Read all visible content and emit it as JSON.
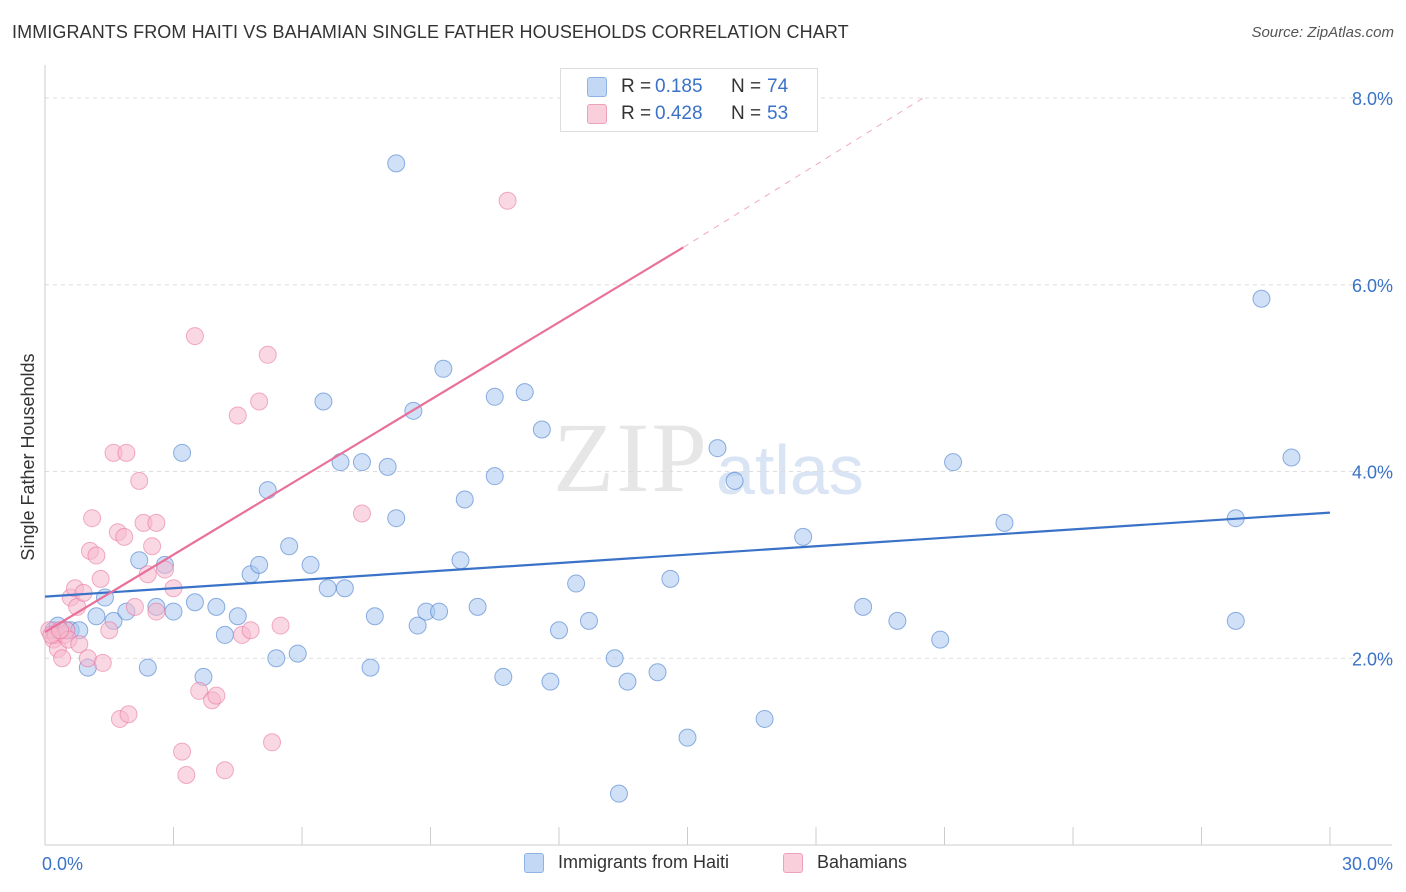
{
  "title": "IMMIGRANTS FROM HAITI VS BAHAMIAN SINGLE FATHER HOUSEHOLDS CORRELATION CHART",
  "source": "Source: ZipAtlas.com",
  "watermark": {
    "zip": "ZIP",
    "atlas": "atlas"
  },
  "legend": {
    "rows": [
      {
        "r_label": "R =",
        "r_value": "0.185",
        "n_label": "N =",
        "n_value": "74",
        "color": "#a9c8f0"
      },
      {
        "r_label": "R =",
        "r_value": "0.428",
        "n_label": "N =",
        "n_value": "53",
        "color": "#f5b8cc"
      }
    ]
  },
  "bottom_legend": [
    {
      "label": "Immigrants from Haiti",
      "color": "#a9c8f0"
    },
    {
      "label": "Bahamians",
      "color": "#f5b8cc"
    }
  ],
  "chart_data": {
    "type": "scatter",
    "title": "IMMIGRANTS FROM HAITI VS BAHAMIAN SINGLE FATHER HOUSEHOLDS CORRELATION CHART",
    "xlabel": "",
    "ylabel": "Single Father Households",
    "xlim": [
      0,
      30
    ],
    "ylim": [
      0,
      8.3
    ],
    "x_tick_labels": [
      "0.0%",
      "30.0%"
    ],
    "y_ticks": [
      2.0,
      4.0,
      6.0,
      8.0
    ],
    "y_tick_labels": [
      "2.0%",
      "4.0%",
      "6.0%",
      "8.0%"
    ],
    "grid": true,
    "series": [
      {
        "name": "Immigrants from Haiti",
        "color": "#3a72c8",
        "fill": "#a9c8f0",
        "trend": {
          "x": [
            0,
            30
          ],
          "y": [
            2.66,
            3.56
          ],
          "dashed_to": null
        },
        "points": [
          [
            0.2,
            2.3
          ],
          [
            0.3,
            2.35
          ],
          [
            0.5,
            2.3
          ],
          [
            0.6,
            2.3
          ],
          [
            0.8,
            2.3
          ],
          [
            1.0,
            1.9
          ],
          [
            1.2,
            2.45
          ],
          [
            1.4,
            2.65
          ],
          [
            1.6,
            2.4
          ],
          [
            1.9,
            2.5
          ],
          [
            2.2,
            3.05
          ],
          [
            2.4,
            1.9
          ],
          [
            2.6,
            2.55
          ],
          [
            2.8,
            3.0
          ],
          [
            3.0,
            2.5
          ],
          [
            3.2,
            4.2
          ],
          [
            3.5,
            2.6
          ],
          [
            3.7,
            1.8
          ],
          [
            4.0,
            2.55
          ],
          [
            4.2,
            2.25
          ],
          [
            4.5,
            2.45
          ],
          [
            4.8,
            2.9
          ],
          [
            5.0,
            3.0
          ],
          [
            5.2,
            3.8
          ],
          [
            5.4,
            2.0
          ],
          [
            5.7,
            3.2
          ],
          [
            5.9,
            2.05
          ],
          [
            6.2,
            3.0
          ],
          [
            6.5,
            4.75
          ],
          [
            6.6,
            2.75
          ],
          [
            6.9,
            4.1
          ],
          [
            7.0,
            2.75
          ],
          [
            7.4,
            4.1
          ],
          [
            7.6,
            1.9
          ],
          [
            7.7,
            2.45
          ],
          [
            8.0,
            4.05
          ],
          [
            8.2,
            3.5
          ],
          [
            8.2,
            7.3
          ],
          [
            8.6,
            4.65
          ],
          [
            8.7,
            2.35
          ],
          [
            8.9,
            2.5
          ],
          [
            9.2,
            2.5
          ],
          [
            9.3,
            5.1
          ],
          [
            9.7,
            3.05
          ],
          [
            9.8,
            3.7
          ],
          [
            10.1,
            2.55
          ],
          [
            10.5,
            4.8
          ],
          [
            10.5,
            3.95
          ],
          [
            10.7,
            1.8
          ],
          [
            11.2,
            4.85
          ],
          [
            11.6,
            4.45
          ],
          [
            11.8,
            1.75
          ],
          [
            12.0,
            2.3
          ],
          [
            12.4,
            2.8
          ],
          [
            12.7,
            2.4
          ],
          [
            13.3,
            2.0
          ],
          [
            13.4,
            0.55
          ],
          [
            13.6,
            1.75
          ],
          [
            14.3,
            1.85
          ],
          [
            14.6,
            2.85
          ],
          [
            15.0,
            1.15
          ],
          [
            15.7,
            4.25
          ],
          [
            16.1,
            3.9
          ],
          [
            16.8,
            1.35
          ],
          [
            17.7,
            3.3
          ],
          [
            19.1,
            2.55
          ],
          [
            19.9,
            2.4
          ],
          [
            20.9,
            2.2
          ],
          [
            21.2,
            4.1
          ],
          [
            22.4,
            3.45
          ],
          [
            27.8,
            3.5
          ],
          [
            27.8,
            2.4
          ],
          [
            28.4,
            5.85
          ],
          [
            29.1,
            4.15
          ]
        ]
      },
      {
        "name": "Bahamians",
        "color": "#e8709a",
        "fill": "#f5b8cc",
        "trend": {
          "x": [
            0,
            14.9
          ],
          "y": [
            2.28,
            6.4
          ],
          "dashed_to": [
            20.5,
            8.0
          ]
        },
        "points": [
          [
            0.1,
            2.3
          ],
          [
            0.2,
            2.2
          ],
          [
            0.25,
            2.25
          ],
          [
            0.3,
            2.1
          ],
          [
            0.4,
            2.0
          ],
          [
            0.45,
            2.25
          ],
          [
            0.5,
            2.3
          ],
          [
            0.55,
            2.2
          ],
          [
            0.6,
            2.65
          ],
          [
            0.7,
            2.75
          ],
          [
            0.75,
            2.55
          ],
          [
            0.8,
            2.15
          ],
          [
            0.9,
            2.7
          ],
          [
            1.0,
            2.0
          ],
          [
            1.05,
            3.15
          ],
          [
            1.1,
            3.5
          ],
          [
            1.2,
            3.1
          ],
          [
            1.3,
            2.85
          ],
          [
            1.35,
            1.95
          ],
          [
            1.5,
            2.3
          ],
          [
            1.6,
            4.2
          ],
          [
            1.7,
            3.35
          ],
          [
            1.75,
            1.35
          ],
          [
            1.85,
            3.3
          ],
          [
            1.9,
            4.2
          ],
          [
            1.95,
            1.4
          ],
          [
            2.1,
            2.55
          ],
          [
            2.2,
            3.9
          ],
          [
            2.3,
            3.45
          ],
          [
            2.4,
            2.9
          ],
          [
            2.5,
            3.2
          ],
          [
            2.6,
            3.45
          ],
          [
            2.6,
            2.5
          ],
          [
            2.8,
            2.95
          ],
          [
            3.0,
            2.75
          ],
          [
            3.2,
            1.0
          ],
          [
            3.3,
            0.75
          ],
          [
            3.5,
            5.45
          ],
          [
            3.6,
            1.65
          ],
          [
            3.9,
            1.55
          ],
          [
            4.0,
            1.6
          ],
          [
            4.2,
            0.8
          ],
          [
            4.5,
            4.6
          ],
          [
            4.6,
            2.25
          ],
          [
            4.8,
            2.3
          ],
          [
            5.0,
            4.75
          ],
          [
            5.2,
            5.25
          ],
          [
            5.3,
            1.1
          ],
          [
            5.5,
            2.35
          ],
          [
            7.4,
            3.55
          ],
          [
            10.8,
            6.9
          ],
          [
            0.15,
            2.25
          ],
          [
            0.35,
            2.3
          ]
        ]
      }
    ]
  }
}
